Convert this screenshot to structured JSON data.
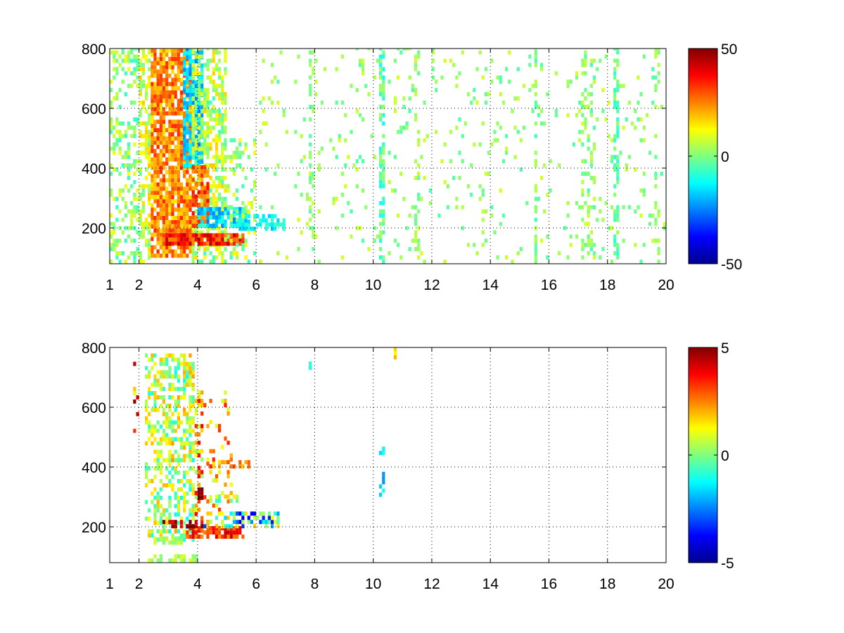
{
  "chart_data": [
    {
      "type": "heatmap",
      "title": "",
      "xlabel": "",
      "ylabel": "",
      "xlim": [
        1,
        20
      ],
      "ylim": [
        80,
        800
      ],
      "x_scale": "linear",
      "xticks": [
        1,
        2,
        4,
        6,
        8,
        10,
        12,
        14,
        16,
        18,
        20
      ],
      "yticks": [
        200,
        400,
        600,
        800
      ],
      "grid": true,
      "colorbar": {
        "colormap": "jet",
        "range": [
          -50,
          50
        ],
        "ticks": [
          -50,
          0,
          50
        ]
      },
      "bands": [
        {
          "x": [
            1.0,
            2.0
          ],
          "y": [
            80,
            800
          ],
          "density": 0.35,
          "mean": 2,
          "spread": 10
        },
        {
          "x": [
            2.0,
            2.4
          ],
          "y": [
            80,
            800
          ],
          "density": 0.6,
          "mean": 8,
          "spread": 10
        },
        {
          "x": [
            2.4,
            3.8
          ],
          "y": [
            100,
            800
          ],
          "density": 0.85,
          "mean": 24,
          "spread": 10
        },
        {
          "x": [
            3.5,
            4.2
          ],
          "y": [
            400,
            800
          ],
          "density": 0.8,
          "mean": -18,
          "spread": 8
        },
        {
          "x": [
            3.8,
            5.0
          ],
          "y": [
            80,
            800
          ],
          "density": 0.6,
          "mean": 6,
          "spread": 12
        },
        {
          "x": [
            3.8,
            4.4
          ],
          "y": [
            200,
            400
          ],
          "density": 0.8,
          "mean": 28,
          "spread": 10
        },
        {
          "x": [
            2.8,
            5.6
          ],
          "y": [
            140,
            175
          ],
          "density": 0.9,
          "mean": 34,
          "spread": 10
        },
        {
          "x": [
            4.0,
            5.8
          ],
          "y": [
            200,
            260
          ],
          "density": 0.7,
          "mean": -16,
          "spread": 10
        },
        {
          "x": [
            5.0,
            6.0
          ],
          "y": [
            80,
            500
          ],
          "density": 0.3,
          "mean": 4,
          "spread": 10
        },
        {
          "x": [
            5.4,
            7.0
          ],
          "y": [
            190,
            240
          ],
          "density": 0.55,
          "mean": -12,
          "spread": 6
        },
        {
          "x": [
            6.0,
            20.0
          ],
          "y": [
            80,
            800
          ],
          "density": 0.06,
          "mean": 2,
          "spread": 7
        },
        {
          "x": [
            7.8,
            8.0
          ],
          "y": [
            80,
            800
          ],
          "density": 0.3,
          "mean": 1,
          "spread": 6
        },
        {
          "x": [
            10.2,
            10.4
          ],
          "y": [
            80,
            800
          ],
          "density": 0.55,
          "mean": -4,
          "spread": 8
        },
        {
          "x": [
            11.4,
            11.6
          ],
          "y": [
            80,
            800
          ],
          "density": 0.3,
          "mean": 2,
          "spread": 6
        },
        {
          "x": [
            15.5,
            15.6
          ],
          "y": [
            80,
            800
          ],
          "density": 0.5,
          "mean": 0,
          "spread": 6
        },
        {
          "x": [
            17.1,
            17.6
          ],
          "y": [
            80,
            800
          ],
          "density": 0.3,
          "mean": 1,
          "spread": 7
        },
        {
          "x": [
            18.2,
            18.4
          ],
          "y": [
            80,
            800
          ],
          "density": 0.5,
          "mean": -3,
          "spread": 6
        },
        {
          "x": [
            19.6,
            19.8
          ],
          "y": [
            80,
            800
          ],
          "density": 0.3,
          "mean": 2,
          "spread": 6
        }
      ]
    },
    {
      "type": "heatmap",
      "title": "",
      "xlabel": "",
      "ylabel": "",
      "xlim": [
        1,
        20
      ],
      "ylim": [
        80,
        800
      ],
      "x_scale": "linear",
      "xticks": [
        1,
        2,
        4,
        6,
        8,
        10,
        12,
        14,
        16,
        18,
        20
      ],
      "yticks": [
        200,
        400,
        600,
        800
      ],
      "grid": true,
      "colorbar": {
        "colormap": "jet",
        "range": [
          -5,
          5
        ],
        "ticks": [
          -5,
          0,
          5
        ]
      },
      "bands": [
        {
          "x": [
            1.8,
            2.0
          ],
          "y": [
            500,
            780
          ],
          "density": 0.15,
          "mean": 3,
          "spread": 2
        },
        {
          "x": [
            2.2,
            3.0
          ],
          "y": [
            150,
            780
          ],
          "density": 0.45,
          "mean": 0.5,
          "spread": 1.5
        },
        {
          "x": [
            3.0,
            3.9
          ],
          "y": [
            150,
            780
          ],
          "density": 0.55,
          "mean": 0.5,
          "spread": 1.8
        },
        {
          "x": [
            3.9,
            4.2
          ],
          "y": [
            180,
            650
          ],
          "density": 0.35,
          "mean": 2,
          "spread": 2
        },
        {
          "x": [
            4.2,
            5.2
          ],
          "y": [
            250,
            650
          ],
          "density": 0.12,
          "mean": 2,
          "spread": 1.5
        },
        {
          "x": [
            2.2,
            4.0
          ],
          "y": [
            80,
            100
          ],
          "density": 0.6,
          "mean": 0.4,
          "spread": 0.5
        },
        {
          "x": [
            2.4,
            3.6
          ],
          "y": [
            140,
            165
          ],
          "density": 0.6,
          "mean": 0.6,
          "spread": 0.7
        },
        {
          "x": [
            3.6,
            5.6
          ],
          "y": [
            160,
            190
          ],
          "density": 0.8,
          "mean": 3.2,
          "spread": 1.2
        },
        {
          "x": [
            2.8,
            4.4
          ],
          "y": [
            195,
            215
          ],
          "density": 0.7,
          "mean": 4.5,
          "spread": 1.0
        },
        {
          "x": [
            4.2,
            6.8
          ],
          "y": [
            195,
            245
          ],
          "density": 0.55,
          "mean": -1,
          "spread": 3.0
        },
        {
          "x": [
            4.0,
            4.2
          ],
          "y": [
            290,
            320
          ],
          "density": 0.95,
          "mean": 4.9,
          "spread": 0.3
        },
        {
          "x": [
            4.4,
            5.6
          ],
          "y": [
            280,
            300
          ],
          "density": 0.5,
          "mean": 0.5,
          "spread": 1.5
        },
        {
          "x": [
            4.4,
            5.8
          ],
          "y": [
            395,
            410
          ],
          "density": 0.4,
          "mean": 2.5,
          "spread": 1.0
        },
        {
          "x": [
            10.2,
            10.4
          ],
          "y": [
            300,
            480
          ],
          "density": 0.4,
          "mean": -1.5,
          "spread": 1.0
        },
        {
          "x": [
            10.7,
            10.8
          ],
          "y": [
            760,
            790
          ],
          "density": 0.8,
          "mean": 1.5,
          "spread": 0.5
        },
        {
          "x": [
            7.8,
            7.9
          ],
          "y": [
            725,
            740
          ],
          "density": 0.8,
          "mean": -1,
          "spread": 0.3
        }
      ]
    }
  ]
}
